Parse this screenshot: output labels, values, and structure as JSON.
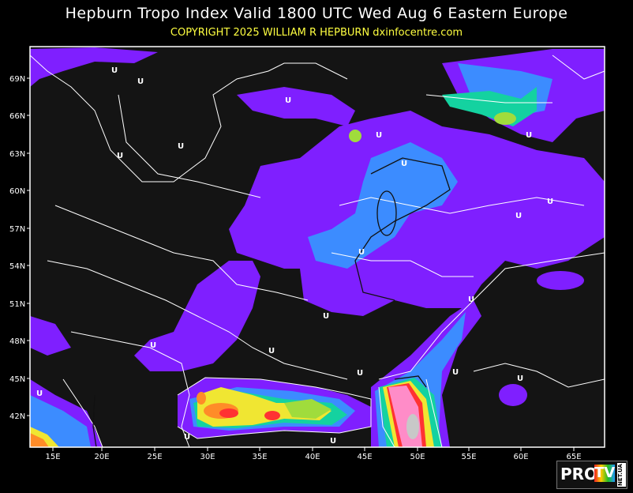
{
  "header": {
    "title": "Hepburn Tropo Index Valid 1800 UTC Wed Aug 6 Eastern Europe",
    "copyright": "COPYRIGHT 2025   WILLIAM R HEPBURN   dxinfocentre.com"
  },
  "map": {
    "latitude_labels": [
      "69N",
      "66N",
      "63N",
      "60N",
      "57N",
      "54N",
      "51N",
      "48N",
      "45N",
      "42N"
    ],
    "longitude_labels": [
      "15E",
      "20E",
      "25E",
      "30E",
      "35E",
      "40E",
      "45E",
      "50E",
      "55E",
      "60E",
      "65E"
    ],
    "marker_label": "U",
    "colors": {
      "background": "#141414",
      "index_purple": "#7f1fff",
      "index_blue": "#3c8cff",
      "index_cyan": "#14d2a0",
      "index_green": "#a0dc3c",
      "index_yellow": "#f0e632",
      "index_orange": "#ff8c28",
      "index_red": "#ff3232",
      "index_pink": "#ff8cc8",
      "index_lightpink": "#ffc8e6",
      "index_grey": "#c8c8c8",
      "borders": "#ffffff"
    }
  },
  "logo": {
    "pro": "PRO",
    "tv": "TV",
    "net": "NET.UA"
  }
}
